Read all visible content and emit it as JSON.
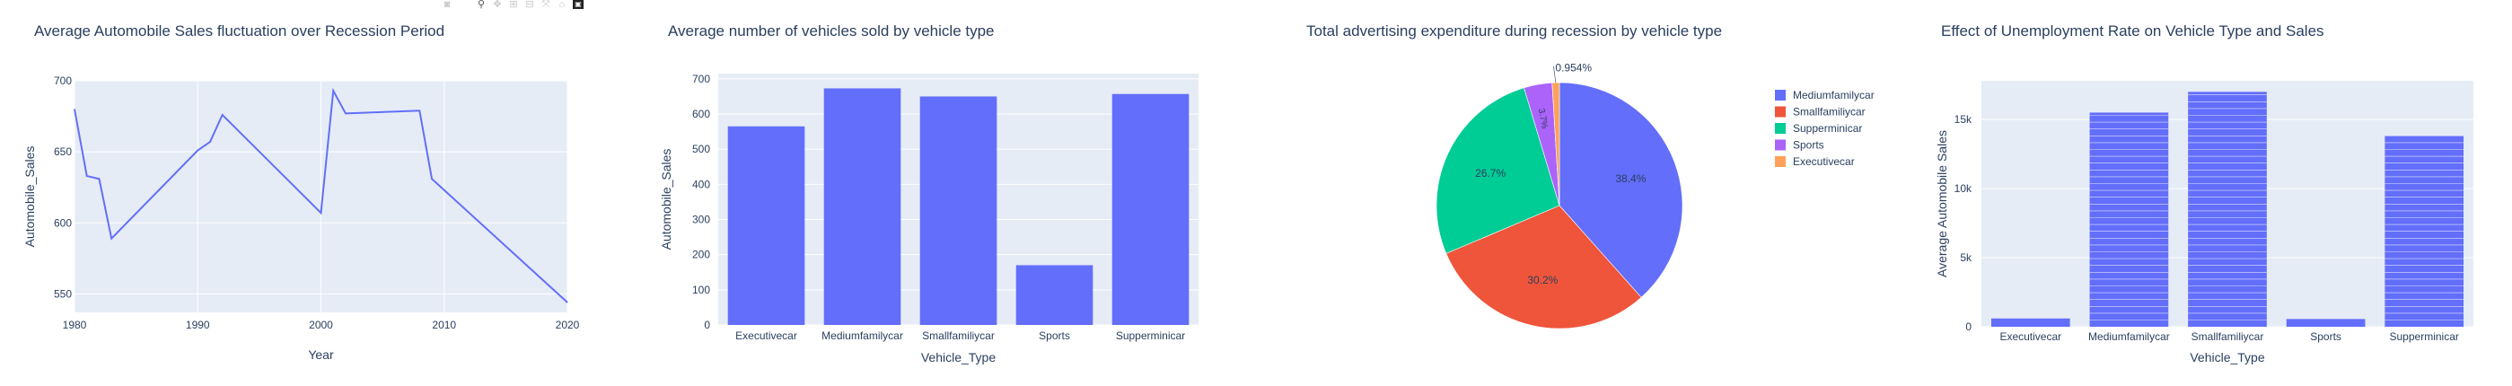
{
  "modebar": {
    "icons": [
      "camera-icon",
      "zoom-icon",
      "pan-icon",
      "zoom-in-icon",
      "zoom-out-icon",
      "autoscale-icon",
      "reset-axes-icon",
      "plotly-logo-icon"
    ]
  },
  "colors": {
    "plot_bg": "#E5ECF6",
    "grid": "#ffffff",
    "text": "#2a3f5f",
    "series": [
      "#636efa",
      "#EF553B",
      "#00cc96",
      "#ab63fa",
      "#FFA15A"
    ]
  },
  "chart_data": [
    {
      "type": "line",
      "title": "Average Automobile Sales fluctuation over Recession Period",
      "xlabel": "Year",
      "ylabel": "Automobile_Sales",
      "xlim": [
        1980,
        2020
      ],
      "ylim": [
        537,
        700
      ],
      "xticks": [
        1980,
        1990,
        2000,
        2010,
        2020
      ],
      "yticks": [
        550,
        600,
        650,
        700
      ],
      "grid": true,
      "x": [
        1980,
        1981,
        1982,
        1983,
        1990,
        1991,
        1992,
        2000,
        2001,
        2002,
        2008,
        2009,
        2020
      ],
      "y": [
        680,
        633,
        631,
        589,
        651,
        657,
        676,
        607,
        693,
        677,
        679,
        631,
        544
      ]
    },
    {
      "type": "bar",
      "title": "Average number of vehicles sold by vehicle type",
      "xlabel": "Vehicle_Type",
      "ylabel": "Automobile_Sales",
      "ylim": [
        0,
        715
      ],
      "yticks": [
        0,
        100,
        200,
        300,
        400,
        500,
        600,
        700
      ],
      "grid": true,
      "categories": [
        "Executivecar",
        "Mediumfamilycar",
        "Smallfamiliycar",
        "Sports",
        "Supperminicar"
      ],
      "values": [
        565,
        673,
        650,
        170,
        657
      ]
    },
    {
      "type": "pie",
      "title": "Total advertising expenditure during recession by vehicle type",
      "legend_position": "right",
      "slices": [
        {
          "label": "Mediumfamilycar",
          "percent": 38.4,
          "text": "38.4%"
        },
        {
          "label": "Smallfamiliycar",
          "percent": 30.2,
          "text": "30.2%"
        },
        {
          "label": "Supperminicar",
          "percent": 26.7,
          "text": "26.7%"
        },
        {
          "label": "Sports",
          "percent": 3.7,
          "text": "3.7%"
        },
        {
          "label": "Executivecar",
          "percent": 0.954,
          "text": "0.954%"
        }
      ]
    },
    {
      "type": "bar",
      "title": "Effect of Unemployment Rate on Vehicle Type and Sales",
      "xlabel": "Vehicle_Type",
      "ylabel": "Average Automobile Sales",
      "ylim": [
        0,
        17800
      ],
      "yticks": [
        0,
        5000,
        10000,
        15000
      ],
      "ytick_labels": [
        "0",
        "5k",
        "10k",
        "15k"
      ],
      "grid": true,
      "stacked_segments": true,
      "categories": [
        "Executivecar",
        "Mediumfamilycar",
        "Smallfamiliycar",
        "Sports",
        "Supperminicar"
      ],
      "values": [
        600,
        15500,
        17000,
        560,
        13800
      ]
    }
  ]
}
